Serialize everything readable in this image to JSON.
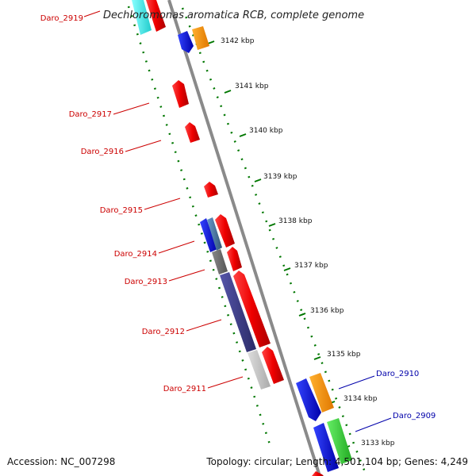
{
  "title": "Dechloromonas aromatica RCB, complete genome",
  "footer": {
    "accession": "Accession: NC_007298",
    "info": "Topology: circular; Length: 4,501,104 bp; Genes: 4,249"
  },
  "colors": {
    "reverse_label": "#cc0000",
    "forward_label": "#0000aa",
    "backbone": "#888888",
    "ruler": "#007700"
  },
  "ruler_ticks": [
    {
      "label": "3142 kbp"
    },
    {
      "label": "3141 kbp"
    },
    {
      "label": "3140 kbp"
    },
    {
      "label": "3139 kbp"
    },
    {
      "label": "3138 kbp"
    },
    {
      "label": "3137 kbp"
    },
    {
      "label": "3136 kbp"
    },
    {
      "label": "3135 kbp"
    },
    {
      "label": "3134 kbp"
    },
    {
      "label": "3133 kbp"
    }
  ],
  "gene_labels": [
    {
      "id": "Daro_2919",
      "strand": "reverse"
    },
    {
      "id": "Daro_2917",
      "strand": "reverse"
    },
    {
      "id": "Daro_2916",
      "strand": "reverse"
    },
    {
      "id": "Daro_2915",
      "strand": "reverse"
    },
    {
      "id": "Daro_2914",
      "strand": "reverse"
    },
    {
      "id": "Daro_2913",
      "strand": "reverse"
    },
    {
      "id": "Daro_2912",
      "strand": "reverse"
    },
    {
      "id": "Daro_2911",
      "strand": "reverse"
    },
    {
      "id": "Daro_2910",
      "strand": "forward"
    },
    {
      "id": "Daro_2909",
      "strand": "forward"
    }
  ]
}
